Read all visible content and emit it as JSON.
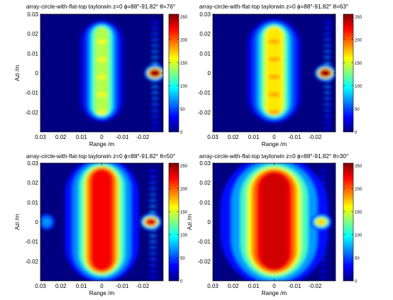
{
  "colormap": "jet",
  "chart_data": [
    {
      "type": "heatmap",
      "title": "array-circle-with-flat-top  taylorwin  z=0  ϕ=88°-91.82°  θ=76°",
      "xlabel": "Range /m",
      "ylabel": "Azi /m",
      "xlim": [
        0.03,
        -0.03
      ],
      "ylim": [
        -0.03,
        0.03
      ],
      "xticks": [
        "0.03",
        "0.02",
        "0.01",
        "0",
        "-0.01",
        "-0.02"
      ],
      "yticks": [
        "0.03",
        "0.02",
        "0.01",
        "0",
        "-0.01",
        "-0.02"
      ],
      "colorbar": {
        "min": 0,
        "max": 255,
        "ticks": [
          "250",
          "200",
          "150",
          "100",
          "50",
          "0"
        ]
      },
      "features": {
        "column": {
          "center_range": 0.0,
          "half_width": 0.0045,
          "azi_range": [
            -0.022,
            0.024
          ],
          "level": 140
        },
        "hotspot": {
          "range": -0.026,
          "azi": 0.0,
          "level": 255
        },
        "sidelobes": {
          "range": -0.026,
          "spacing": 0.003,
          "level": 80
        }
      }
    },
    {
      "type": "heatmap",
      "title": "array-circle-with-flat-top  taylorwin  z=0  ϕ=88°-91.82°  θ=63°",
      "xlabel": "Range /m",
      "ylabel": "",
      "xlim": [
        0.03,
        -0.03
      ],
      "ylim": [
        -0.03,
        0.03
      ],
      "xticks": [
        "0.03",
        "0.02",
        "0.01",
        "0",
        "-0.01",
        "-0.02"
      ],
      "yticks": [
        "0.03",
        "0.02",
        "0.01",
        "0",
        "-0.01",
        "-0.02"
      ],
      "colorbar": {
        "min": 0,
        "max": 255,
        "ticks": [
          "250",
          "200",
          "150",
          "100",
          "50",
          "0"
        ]
      },
      "features": {
        "column": {
          "center_range": 0.0,
          "half_width": 0.0055,
          "azi_range": [
            -0.022,
            0.024
          ],
          "level": 165
        },
        "hotspot": {
          "range": -0.025,
          "azi": 0.0,
          "level": 255
        },
        "sidelobes": {
          "range": -0.026,
          "spacing": 0.003,
          "level": 75
        }
      }
    },
    {
      "type": "heatmap",
      "title": "array-circle-with-flat-top  taylorwin  z=0  ϕ=88°-91.82°  θ=50°",
      "xlabel": "Range /m",
      "ylabel": "Azi /m",
      "xlim": [
        0.03,
        -0.03
      ],
      "ylim": [
        -0.03,
        0.03
      ],
      "xticks": [
        "0.03",
        "0.02",
        "0.01",
        "0",
        "-0.01",
        "-0.02"
      ],
      "yticks": [
        "0.03",
        "0.02",
        "0.01",
        "0",
        "-0.01",
        "-0.02"
      ],
      "colorbar": {
        "min": 0,
        "max": 255,
        "ticks": [
          "250",
          "200",
          "150",
          "100",
          "50",
          "0"
        ]
      },
      "features": {
        "column": {
          "center_range": 0.0,
          "half_width": 0.0075,
          "azi_range": [
            -0.026,
            0.028
          ],
          "level": 225
        },
        "hotspot": {
          "range": -0.024,
          "azi": 0.0,
          "level": 235
        },
        "sidelobes": {
          "range": -0.025,
          "spacing": 0.003,
          "level": 80
        },
        "left_blob": {
          "range": 0.027,
          "azi": 0.0,
          "level": 70
        }
      }
    },
    {
      "type": "heatmap",
      "title": "array-circle-with-flat-top  taylorwin  z=0  ϕ=88°-91.82°  θ=30°",
      "xlabel": "Range /m",
      "ylabel": "Azi /m",
      "xlim": [
        0.03,
        -0.03
      ],
      "ylim": [
        -0.03,
        0.03
      ],
      "xticks": [
        "0.03",
        "0.02",
        "0.01",
        "0",
        "-0.01",
        "-0.02"
      ],
      "yticks": [
        "0.03",
        "0.02",
        "0.01",
        "0",
        "-0.01",
        "-0.02"
      ],
      "colorbar": {
        "min": 0,
        "max": 255,
        "ticks": [
          "250",
          "200",
          "150",
          "100",
          "50",
          "0"
        ]
      },
      "features": {
        "column": {
          "center_range": 0.0,
          "half_width": 0.011,
          "azi_range": [
            -0.026,
            0.027
          ],
          "level": 235
        },
        "hotspot": {
          "range": -0.023,
          "azi": 0.0,
          "level": 170
        },
        "sidelobes": {
          "range": -0.024,
          "spacing": 0.003,
          "level": 65
        },
        "left_blob": {
          "range": 0.019,
          "azi": 0.0,
          "level": 95
        }
      }
    }
  ]
}
